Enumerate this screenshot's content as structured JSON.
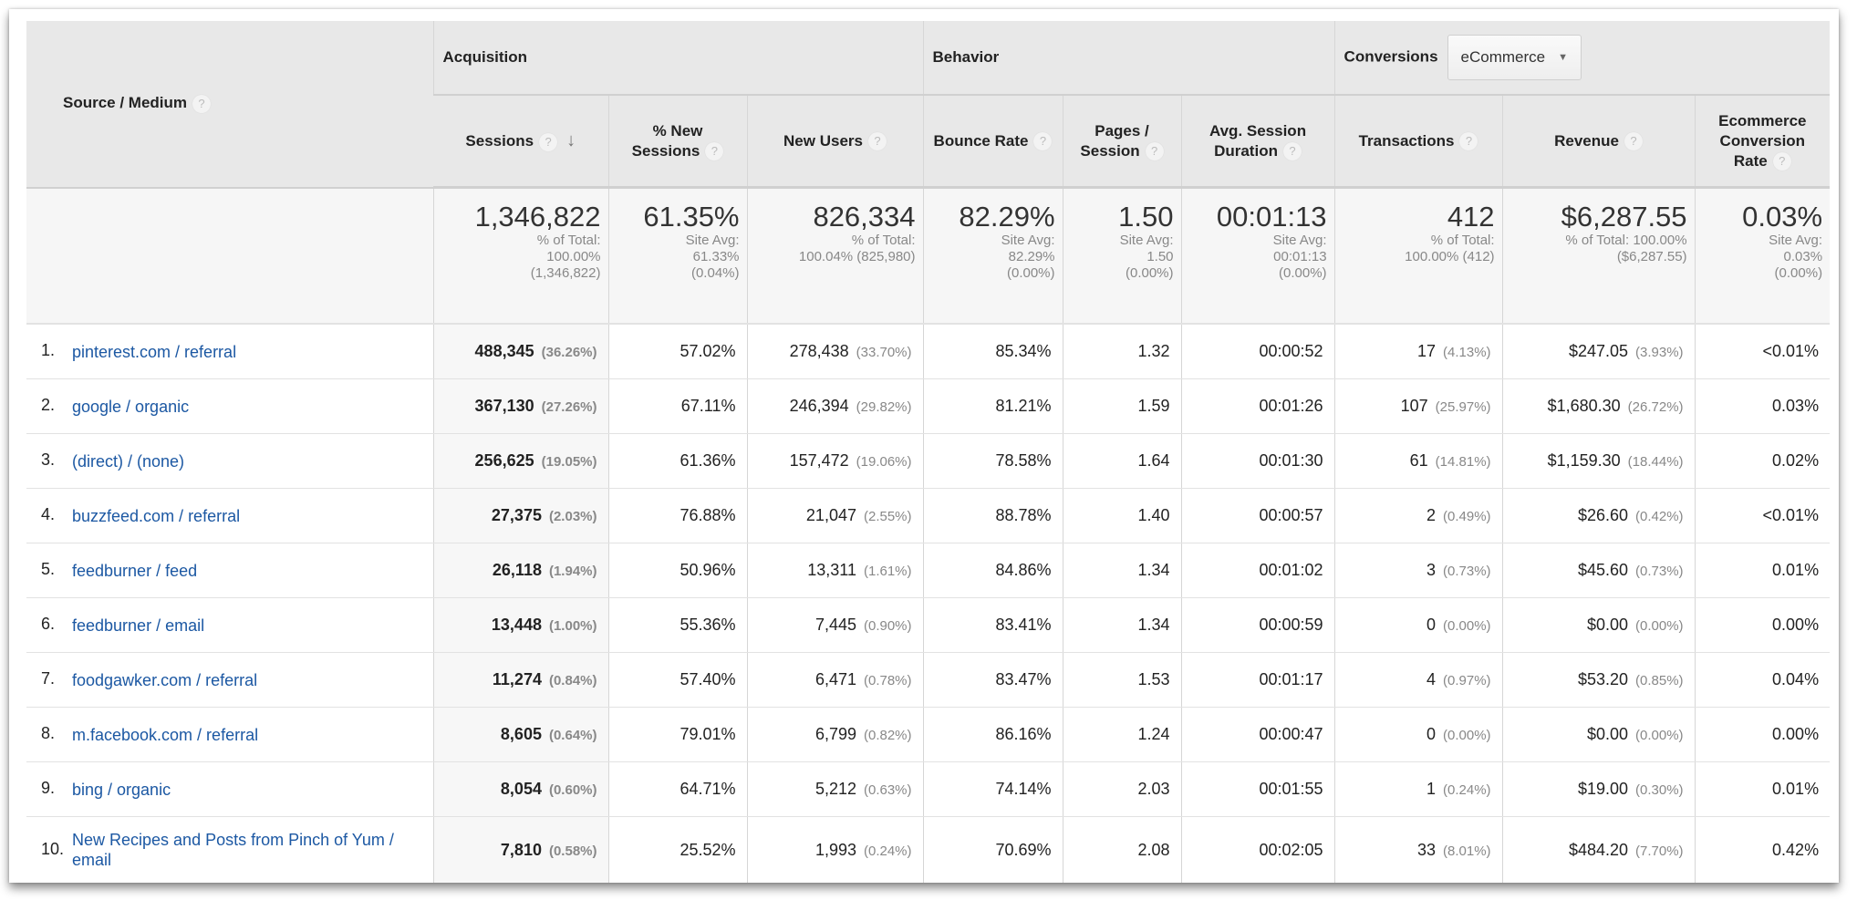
{
  "header": {
    "source_medium": "Source / Medium",
    "groups": {
      "acquisition": "Acquisition",
      "behavior": "Behavior",
      "conversions": "Conversions"
    },
    "conversions_dropdown": "eCommerce",
    "columns": {
      "sessions": "Sessions",
      "pct_new_sessions": "% New Sessions",
      "new_users": "New Users",
      "bounce_rate": "Bounce Rate",
      "pages_session": "Pages / Session",
      "avg_session_duration": "Avg. Session Duration",
      "transactions": "Transactions",
      "revenue": "Revenue",
      "ecommerce_conversion_rate": "Ecommerce Conversion Rate"
    },
    "help_glyph": "?",
    "sort_glyph": "↓"
  },
  "summary": {
    "sessions": {
      "value": "1,346,822",
      "l1": "% of Total:",
      "l2": "100.00%",
      "l3": "(1,346,822)"
    },
    "pct_new_sessions": {
      "value": "61.35%",
      "l1": "Site Avg:",
      "l2": "61.33%",
      "l3": "(0.04%)"
    },
    "new_users": {
      "value": "826,334",
      "l1": "% of Total:",
      "l2": "100.04% (825,980)",
      "l3": ""
    },
    "bounce_rate": {
      "value": "82.29%",
      "l1": "Site Avg:",
      "l2": "82.29%",
      "l3": "(0.00%)"
    },
    "pages_session": {
      "value": "1.50",
      "l1": "Site Avg:",
      "l2": "1.50",
      "l3": "(0.00%)"
    },
    "avg_session_duration": {
      "value": "00:01:13",
      "l1": "Site Avg:",
      "l2": "00:01:13",
      "l3": "(0.00%)"
    },
    "transactions": {
      "value": "412",
      "l1": "% of Total:",
      "l2": "100.00% (412)",
      "l3": ""
    },
    "revenue": {
      "value": "$6,287.55",
      "l1": "% of Total: 100.00%",
      "l2": "($6,287.55)",
      "l3": ""
    },
    "ecommerce_conversion_rate": {
      "value": "0.03%",
      "l1": "Site Avg:",
      "l2": "0.03%",
      "l3": "(0.00%)"
    }
  },
  "rows": [
    {
      "n": "1.",
      "src": "pinterest.com / referral",
      "ses": "488,345",
      "ses_p": "(36.26%)",
      "pns": "57.02%",
      "nu": "278,438",
      "nu_p": "(33.70%)",
      "br": "85.34%",
      "ps": "1.32",
      "dur": "00:00:52",
      "tr": "17",
      "tr_p": "(4.13%)",
      "rev": "$247.05",
      "rev_p": "(3.93%)",
      "cr": "<0.01%"
    },
    {
      "n": "2.",
      "src": "google / organic",
      "ses": "367,130",
      "ses_p": "(27.26%)",
      "pns": "67.11%",
      "nu": "246,394",
      "nu_p": "(29.82%)",
      "br": "81.21%",
      "ps": "1.59",
      "dur": "00:01:26",
      "tr": "107",
      "tr_p": "(25.97%)",
      "rev": "$1,680.30",
      "rev_p": "(26.72%)",
      "cr": "0.03%"
    },
    {
      "n": "3.",
      "src": "(direct) / (none)",
      "ses": "256,625",
      "ses_p": "(19.05%)",
      "pns": "61.36%",
      "nu": "157,472",
      "nu_p": "(19.06%)",
      "br": "78.58%",
      "ps": "1.64",
      "dur": "00:01:30",
      "tr": "61",
      "tr_p": "(14.81%)",
      "rev": "$1,159.30",
      "rev_p": "(18.44%)",
      "cr": "0.02%"
    },
    {
      "n": "4.",
      "src": "buzzfeed.com / referral",
      "ses": "27,375",
      "ses_p": "(2.03%)",
      "pns": "76.88%",
      "nu": "21,047",
      "nu_p": "(2.55%)",
      "br": "88.78%",
      "ps": "1.40",
      "dur": "00:00:57",
      "tr": "2",
      "tr_p": "(0.49%)",
      "rev": "$26.60",
      "rev_p": "(0.42%)",
      "cr": "<0.01%"
    },
    {
      "n": "5.",
      "src": "feedburner / feed",
      "ses": "26,118",
      "ses_p": "(1.94%)",
      "pns": "50.96%",
      "nu": "13,311",
      "nu_p": "(1.61%)",
      "br": "84.86%",
      "ps": "1.34",
      "dur": "00:01:02",
      "tr": "3",
      "tr_p": "(0.73%)",
      "rev": "$45.60",
      "rev_p": "(0.73%)",
      "cr": "0.01%"
    },
    {
      "n": "6.",
      "src": "feedburner / email",
      "ses": "13,448",
      "ses_p": "(1.00%)",
      "pns": "55.36%",
      "nu": "7,445",
      "nu_p": "(0.90%)",
      "br": "83.41%",
      "ps": "1.34",
      "dur": "00:00:59",
      "tr": "0",
      "tr_p": "(0.00%)",
      "rev": "$0.00",
      "rev_p": "(0.00%)",
      "cr": "0.00%"
    },
    {
      "n": "7.",
      "src": "foodgawker.com / referral",
      "ses": "11,274",
      "ses_p": "(0.84%)",
      "pns": "57.40%",
      "nu": "6,471",
      "nu_p": "(0.78%)",
      "br": "83.47%",
      "ps": "1.53",
      "dur": "00:01:17",
      "tr": "4",
      "tr_p": "(0.97%)",
      "rev": "$53.20",
      "rev_p": "(0.85%)",
      "cr": "0.04%"
    },
    {
      "n": "8.",
      "src": "m.facebook.com / referral",
      "ses": "8,605",
      "ses_p": "(0.64%)",
      "pns": "79.01%",
      "nu": "6,799",
      "nu_p": "(0.82%)",
      "br": "86.16%",
      "ps": "1.24",
      "dur": "00:00:47",
      "tr": "0",
      "tr_p": "(0.00%)",
      "rev": "$0.00",
      "rev_p": "(0.00%)",
      "cr": "0.00%"
    },
    {
      "n": "9.",
      "src": "bing / organic",
      "ses": "8,054",
      "ses_p": "(0.60%)",
      "pns": "64.71%",
      "nu": "5,212",
      "nu_p": "(0.63%)",
      "br": "74.14%",
      "ps": "2.03",
      "dur": "00:01:55",
      "tr": "1",
      "tr_p": "(0.24%)",
      "rev": "$19.00",
      "rev_p": "(0.30%)",
      "cr": "0.01%"
    },
    {
      "n": "10.",
      "src": "New Recipes and Posts from Pinch of Yum / email",
      "ses": "7,810",
      "ses_p": "(0.58%)",
      "pns": "25.52%",
      "nu": "1,993",
      "nu_p": "(0.24%)",
      "br": "70.69%",
      "ps": "2.08",
      "dur": "00:02:05",
      "tr": "33",
      "tr_p": "(8.01%)",
      "rev": "$484.20",
      "rev_p": "(7.70%)",
      "cr": "0.42%"
    }
  ]
}
